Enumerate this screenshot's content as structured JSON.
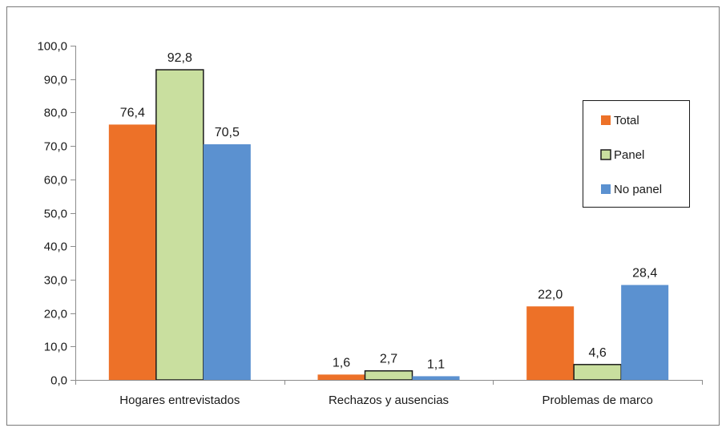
{
  "chart_data": {
    "type": "bar",
    "title": "",
    "xlabel": "",
    "ylabel": "",
    "categories": [
      "Hogares entrevistados",
      "Rechazos y ausencias",
      "Problemas de marco"
    ],
    "series": [
      {
        "name": "Total",
        "color": "#ED7128",
        "values": [
          76.4,
          1.6,
          22.0
        ],
        "labels": [
          "76,4",
          "1,6",
          "22,0"
        ]
      },
      {
        "name": "Panel",
        "color": "#C9DF9F",
        "values": [
          92.8,
          2.7,
          4.6
        ],
        "labels": [
          "92,8",
          "2,7",
          "4,6"
        ]
      },
      {
        "name": "No panel",
        "color": "#5B91D0",
        "values": [
          70.5,
          1.1,
          28.4
        ],
        "labels": [
          "70,5",
          "1,1",
          "28,4"
        ]
      }
    ],
    "ylim": [
      0,
      100
    ],
    "yticks": [
      0,
      10,
      20,
      30,
      40,
      50,
      60,
      70,
      80,
      90,
      100
    ],
    "ytick_labels": [
      "0,0",
      "10,0",
      "20,0",
      "30,0",
      "40,0",
      "50,0",
      "60,0",
      "70,0",
      "80,0",
      "90,0",
      "100,0"
    ],
    "grid": false,
    "legend_position": "right"
  }
}
